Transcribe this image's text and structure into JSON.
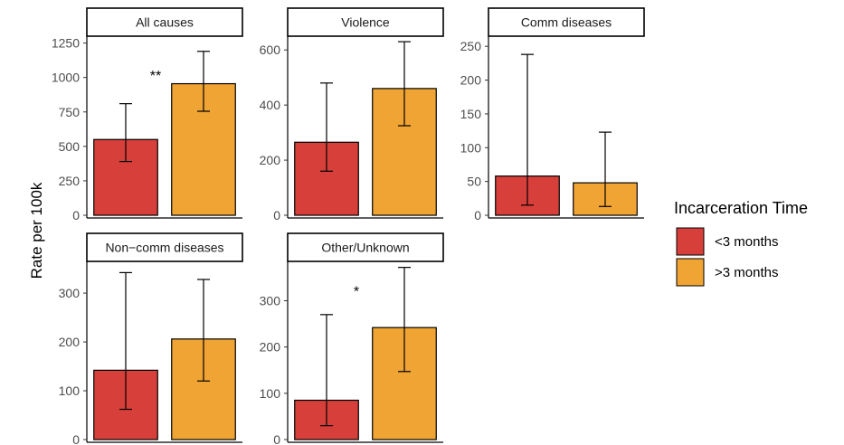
{
  "chart_data": {
    "type": "bar",
    "ylabel": "Rate per 100k",
    "legend": {
      "title": "Incarceration Time",
      "position": "right",
      "entries": [
        {
          "label": "<3 months",
          "color": "#d73f3a"
        },
        {
          "label": ">3 months",
          "color": "#f0a434"
        }
      ]
    },
    "panels": [
      {
        "title": "All causes",
        "ylim": [
          0,
          1300
        ],
        "yticks": [
          0,
          250,
          500,
          750,
          1000,
          1250
        ],
        "values": [
          550,
          955
        ],
        "error_low": [
          390,
          755
        ],
        "error_high": [
          810,
          1190
        ],
        "significance": "**"
      },
      {
        "title": "Violence",
        "ylim": [
          0,
          650
        ],
        "yticks": [
          0,
          200,
          400,
          600
        ],
        "values": [
          265,
          460
        ],
        "error_low": [
          160,
          325
        ],
        "error_high": [
          480,
          630
        ],
        "significance": ""
      },
      {
        "title": "Comm diseases",
        "ylim": [
          0,
          265
        ],
        "yticks": [
          0,
          50,
          100,
          150,
          200,
          250
        ],
        "values": [
          58,
          48
        ],
        "error_low": [
          15,
          13
        ],
        "error_high": [
          238,
          123
        ],
        "significance": ""
      },
      {
        "title": "Non−comm diseases",
        "ylim": [
          0,
          365
        ],
        "yticks": [
          0,
          100,
          200,
          300
        ],
        "values": [
          142,
          206
        ],
        "error_low": [
          62,
          120
        ],
        "error_high": [
          342,
          328
        ],
        "significance": ""
      },
      {
        "title": "Other/Unknown",
        "ylim": [
          0,
          385
        ],
        "yticks": [
          0,
          100,
          200,
          300
        ],
        "values": [
          85,
          242
        ],
        "error_low": [
          30,
          147
        ],
        "error_high": [
          270,
          372
        ],
        "significance": "*"
      }
    ]
  }
}
